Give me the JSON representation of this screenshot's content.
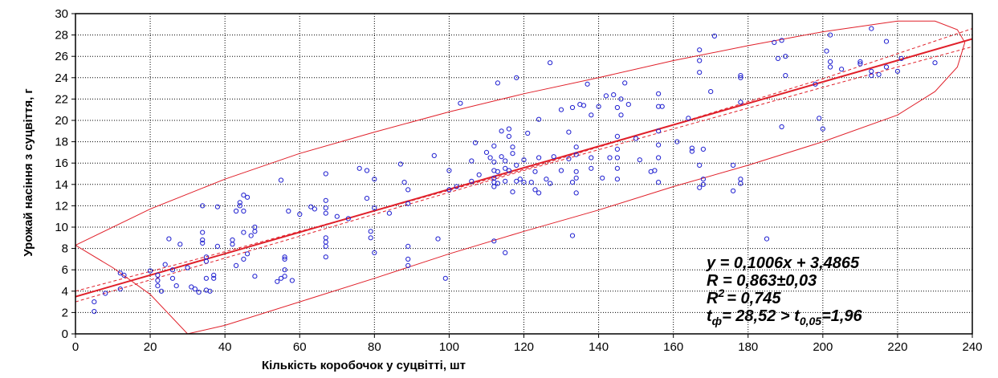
{
  "chart_data": {
    "type": "scatter",
    "title": "",
    "xlabel": "Кількість коробочок у суцвітті, шт",
    "ylabel": "Урожай насіння з суцвіття, г",
    "xlim": [
      0,
      240
    ],
    "ylim": [
      0,
      30
    ],
    "xticks": [
      0,
      20,
      40,
      60,
      80,
      100,
      120,
      140,
      160,
      180,
      200,
      220,
      240
    ],
    "yticks": [
      0,
      2,
      4,
      6,
      8,
      10,
      12,
      14,
      16,
      18,
      20,
      22,
      24,
      26,
      28,
      30
    ],
    "grid": true,
    "colors": {
      "points": "#1f1fd0",
      "lines": "#e0202a",
      "axis": "#000000",
      "grid": "#000000"
    },
    "regression": {
      "slope": 0.1006,
      "intercept": 3.4865
    },
    "confidence_band": {
      "x": [
        0,
        40,
        80,
        120,
        160,
        200,
        240
      ],
      "lower": [
        3.0,
        7.1,
        11.2,
        15.3,
        19.2,
        23.1,
        26.9
      ],
      "upper": [
        4.0,
        7.7,
        11.5,
        15.4,
        19.6,
        23.9,
        28.6
      ]
    },
    "ellipse": {
      "x": [
        30,
        20,
        10,
        0,
        20,
        40,
        60,
        80,
        100,
        120,
        140,
        160,
        180,
        200,
        220,
        230,
        236,
        238,
        236,
        230,
        220,
        200,
        180,
        160,
        140,
        120,
        100,
        80,
        60,
        40,
        30
      ],
      "y": [
        0,
        3.7,
        6.2,
        8.3,
        11.7,
        14.5,
        16.9,
        18.9,
        20.8,
        22.5,
        24.0,
        25.6,
        27.0,
        28.3,
        29.3,
        29.3,
        28.5,
        27.3,
        25.0,
        22.7,
        20.5,
        18.0,
        15.8,
        13.8,
        11.6,
        9.6,
        7.5,
        5.2,
        3.0,
        0.8,
        0
      ]
    },
    "points": [
      [
        5,
        3.0
      ],
      [
        5,
        2.1
      ],
      [
        8,
        3.8
      ],
      [
        12,
        4.2
      ],
      [
        12,
        5.7
      ],
      [
        13,
        5.5
      ],
      [
        20,
        5.9
      ],
      [
        22,
        4.5
      ],
      [
        22,
        5.0
      ],
      [
        22,
        5.5
      ],
      [
        23,
        4.0
      ],
      [
        24,
        6.5
      ],
      [
        25,
        8.9
      ],
      [
        26,
        6.0
      ],
      [
        26,
        5.2
      ],
      [
        27,
        4.5
      ],
      [
        28,
        8.4
      ],
      [
        30,
        6.2
      ],
      [
        31,
        4.4
      ],
      [
        32,
        4.2
      ],
      [
        33,
        3.9
      ],
      [
        34,
        12.0
      ],
      [
        34,
        9.5
      ],
      [
        34,
        8.8
      ],
      [
        34,
        8.5
      ],
      [
        35,
        7.2
      ],
      [
        35,
        6.8
      ],
      [
        35,
        5.2
      ],
      [
        35,
        4.1
      ],
      [
        36,
        4.0
      ],
      [
        37,
        5.5
      ],
      [
        37,
        5.2
      ],
      [
        38,
        11.9
      ],
      [
        38,
        8.2
      ],
      [
        42,
        8.8
      ],
      [
        42,
        8.4
      ],
      [
        43,
        11.5
      ],
      [
        43,
        6.4
      ],
      [
        44,
        12.3
      ],
      [
        44,
        12.0
      ],
      [
        45,
        13.0
      ],
      [
        45,
        11.5
      ],
      [
        45,
        9.5
      ],
      [
        45,
        7.0
      ],
      [
        46,
        12.8
      ],
      [
        46,
        7.5
      ],
      [
        47,
        9.2
      ],
      [
        48,
        10.0
      ],
      [
        48,
        9.6
      ],
      [
        48,
        5.4
      ],
      [
        54,
        4.9
      ],
      [
        55,
        5.2
      ],
      [
        55,
        14.4
      ],
      [
        56,
        7.2
      ],
      [
        56,
        7.0
      ],
      [
        56,
        6.0
      ],
      [
        56,
        5.4
      ],
      [
        57,
        11.5
      ],
      [
        58,
        5.0
      ],
      [
        60,
        11.2
      ],
      [
        63,
        11.9
      ],
      [
        64,
        11.7
      ],
      [
        67,
        15.0
      ],
      [
        67,
        12.5
      ],
      [
        67,
        11.8
      ],
      [
        67,
        11.3
      ],
      [
        67,
        9.0
      ],
      [
        67,
        8.6
      ],
      [
        67,
        8.2
      ],
      [
        67,
        7.2
      ],
      [
        70,
        11.0
      ],
      [
        73,
        10.8
      ],
      [
        76,
        15.5
      ],
      [
        78,
        15.3
      ],
      [
        78,
        12.7
      ],
      [
        79,
        9.6
      ],
      [
        79,
        9.0
      ],
      [
        80,
        14.5
      ],
      [
        80,
        11.8
      ],
      [
        80,
        7.6
      ],
      [
        84,
        11.3
      ],
      [
        87,
        15.9
      ],
      [
        88,
        14.2
      ],
      [
        89,
        13.5
      ],
      [
        89,
        12.2
      ],
      [
        89,
        8.2
      ],
      [
        89,
        7.0
      ],
      [
        89,
        6.4
      ],
      [
        96,
        16.7
      ],
      [
        97,
        8.9
      ],
      [
        99,
        5.2
      ],
      [
        100,
        15.3
      ],
      [
        100,
        13.5
      ],
      [
        102,
        13.8
      ],
      [
        103,
        21.6
      ],
      [
        106,
        16.2
      ],
      [
        106,
        14.3
      ],
      [
        107,
        17.9
      ],
      [
        108,
        14.9
      ],
      [
        110,
        17.0
      ],
      [
        111,
        16.5
      ],
      [
        112,
        17.6
      ],
      [
        112,
        16.1
      ],
      [
        112,
        15.3
      ],
      [
        112,
        14.6
      ],
      [
        112,
        14.2
      ],
      [
        112,
        13.8
      ],
      [
        112,
        8.7
      ],
      [
        113,
        23.5
      ],
      [
        113,
        15.2
      ],
      [
        113,
        14.1
      ],
      [
        114,
        19.0
      ],
      [
        114,
        16.6
      ],
      [
        115,
        16.2
      ],
      [
        115,
        15.5
      ],
      [
        115,
        14.3
      ],
      [
        115,
        7.6
      ],
      [
        116,
        19.2
      ],
      [
        116,
        18.5
      ],
      [
        116,
        15.3
      ],
      [
        117,
        17.5
      ],
      [
        117,
        16.9
      ],
      [
        117,
        13.3
      ],
      [
        118,
        24.0
      ],
      [
        118,
        15.8
      ],
      [
        118,
        14.3
      ],
      [
        119,
        14.5
      ],
      [
        120,
        16.3
      ],
      [
        120,
        14.2
      ],
      [
        121,
        18.8
      ],
      [
        122,
        14.2
      ],
      [
        123,
        15.2
      ],
      [
        123,
        13.5
      ],
      [
        124,
        20.1
      ],
      [
        124,
        16.5
      ],
      [
        124,
        13.2
      ],
      [
        126,
        14.5
      ],
      [
        127,
        25.4
      ],
      [
        127,
        14.1
      ],
      [
        128,
        16.6
      ],
      [
        130,
        21.0
      ],
      [
        130,
        15.3
      ],
      [
        132,
        18.9
      ],
      [
        132,
        16.4
      ],
      [
        133,
        21.2
      ],
      [
        133,
        14.2
      ],
      [
        133,
        9.2
      ],
      [
        134,
        17.5
      ],
      [
        134,
        16.8
      ],
      [
        134,
        15.2
      ],
      [
        134,
        14.6
      ],
      [
        134,
        13.2
      ],
      [
        135,
        21.5
      ],
      [
        136,
        21.4
      ],
      [
        137,
        23.4
      ],
      [
        138,
        20.5
      ],
      [
        138,
        16.5
      ],
      [
        138,
        15.5
      ],
      [
        140,
        21.3
      ],
      [
        141,
        14.6
      ],
      [
        142,
        22.3
      ],
      [
        143,
        16.5
      ],
      [
        144,
        22.4
      ],
      [
        145,
        21.2
      ],
      [
        145,
        18.5
      ],
      [
        145,
        17.3
      ],
      [
        145,
        16.5
      ],
      [
        145,
        15.5
      ],
      [
        145,
        14.5
      ],
      [
        146,
        22.0
      ],
      [
        146,
        20.5
      ],
      [
        147,
        23.5
      ],
      [
        148,
        21.5
      ],
      [
        150,
        18.3
      ],
      [
        151,
        16.3
      ],
      [
        154,
        15.2
      ],
      [
        155,
        15.3
      ],
      [
        156,
        22.5
      ],
      [
        156,
        21.3
      ],
      [
        156,
        19.0
      ],
      [
        156,
        17.7
      ],
      [
        156,
        16.5
      ],
      [
        156,
        14.2
      ],
      [
        157,
        21.3
      ],
      [
        161,
        18.0
      ],
      [
        164,
        20.2
      ],
      [
        165,
        17.4
      ],
      [
        165,
        17.1
      ],
      [
        167,
        26.6
      ],
      [
        167,
        25.6
      ],
      [
        167,
        24.5
      ],
      [
        167,
        15.8
      ],
      [
        167,
        13.7
      ],
      [
        168,
        14.5
      ],
      [
        168,
        14.0
      ],
      [
        168,
        17.3
      ],
      [
        170,
        22.7
      ],
      [
        171,
        27.9
      ],
      [
        176,
        13.4
      ],
      [
        176,
        15.8
      ],
      [
        178,
        24.2
      ],
      [
        178,
        24.0
      ],
      [
        178,
        21.7
      ],
      [
        178,
        14.5
      ],
      [
        178,
        14.1
      ],
      [
        185,
        8.9
      ],
      [
        187,
        27.3
      ],
      [
        188,
        25.8
      ],
      [
        189,
        27.5
      ],
      [
        189,
        19.4
      ],
      [
        190,
        26.0
      ],
      [
        190,
        24.2
      ],
      [
        198,
        23.4
      ],
      [
        199,
        20.2
      ],
      [
        200,
        19.2
      ],
      [
        201,
        26.5
      ],
      [
        202,
        25.5
      ],
      [
        202,
        25.0
      ],
      [
        202,
        28.0
      ],
      [
        205,
        24.8
      ],
      [
        210,
        25.5
      ],
      [
        210,
        25.3
      ],
      [
        213,
        28.6
      ],
      [
        213,
        24.6
      ],
      [
        213,
        24.2
      ],
      [
        215,
        24.3
      ],
      [
        217,
        27.4
      ],
      [
        217,
        25.0
      ],
      [
        220,
        24.6
      ],
      [
        230,
        25.4
      ],
      [
        221,
        25.8
      ]
    ],
    "annotations": {
      "equation": "y = 0,1006x + 3,4865",
      "r": "R = 0,863±0,03",
      "r2_main": "R",
      "r2_sup": "2",
      "r2_rest": "= 0,745",
      "t_main": "t",
      "t_sub": "ф",
      "t_mid": "= 28,52 > t",
      "t_sub2": "0,05",
      "t_end": "=1,96"
    }
  }
}
